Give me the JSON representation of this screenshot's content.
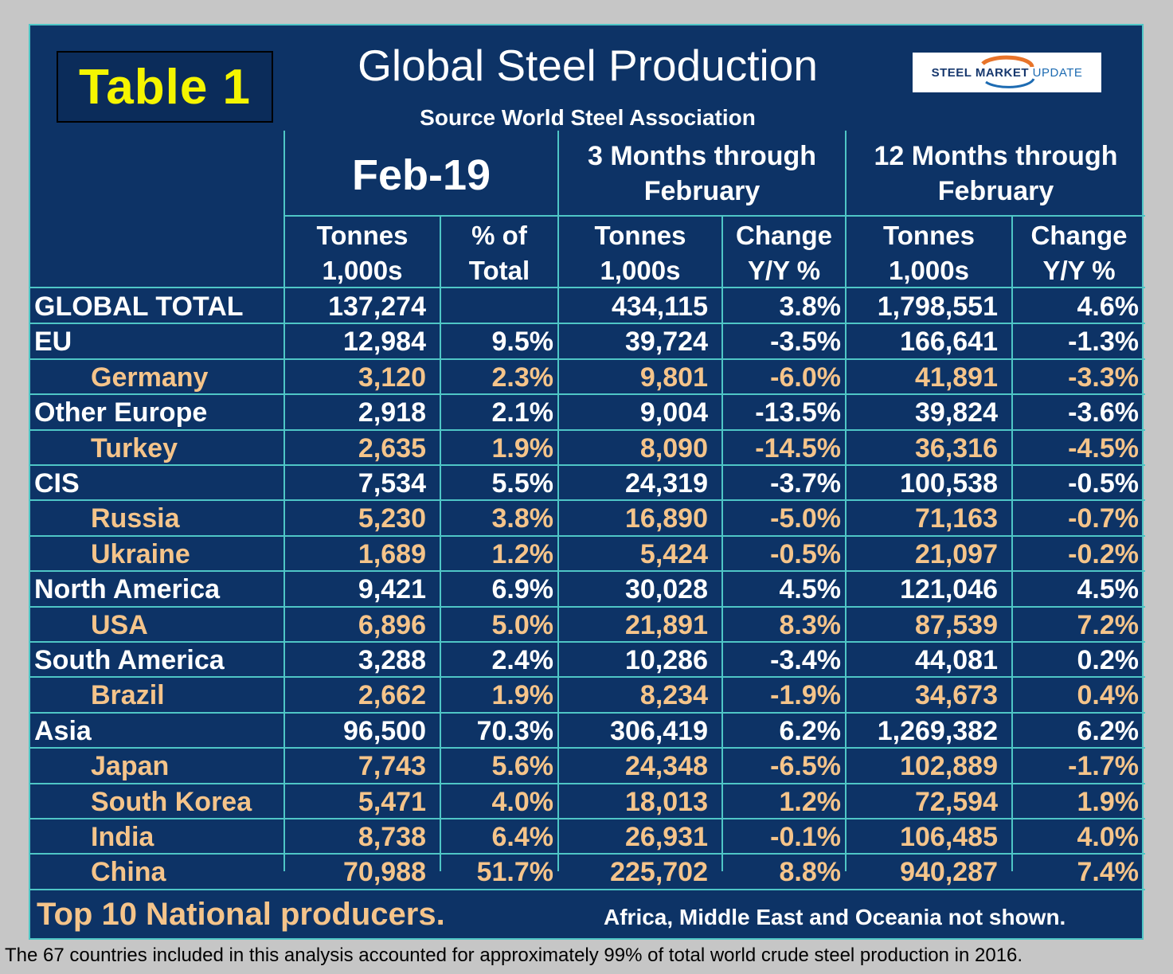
{
  "table_label": "Table 1",
  "title": "Global Steel Production",
  "subtitle": "Source World Steel Association",
  "logo": {
    "bold": "STEEL MARKET",
    "light": "UPDATE",
    "accent_colors": [
      "#e8742a",
      "#1d6bb2"
    ]
  },
  "headers": {
    "period_1": "Feb-19",
    "period_2": {
      "line1": "3 Months through",
      "line2": "February"
    },
    "period_3": {
      "line1": "12 Months through",
      "line2": "February"
    },
    "columns": [
      {
        "line1": "Tonnes",
        "line2": "1,000s"
      },
      {
        "line1": "% of",
        "line2": "Total"
      },
      {
        "line1": "Tonnes",
        "line2": "1,000s"
      },
      {
        "line1": "Change",
        "line2": "Y/Y %"
      },
      {
        "line1": "Tonnes",
        "line2": "1,000s"
      },
      {
        "line1": "Change",
        "line2": "Y/Y %"
      }
    ]
  },
  "rows": [
    {
      "name": "GLOBAL TOTAL",
      "level": "main",
      "values": [
        "137,274",
        "",
        "434,115",
        "3.8%",
        "1,798,551",
        "4.6%"
      ]
    },
    {
      "name": "EU",
      "level": "main",
      "values": [
        "12,984",
        "9.5%",
        "39,724",
        "-3.5%",
        "166,641",
        "-1.3%"
      ]
    },
    {
      "name": "Germany",
      "level": "sub",
      "values": [
        "3,120",
        "2.3%",
        "9,801",
        "-6.0%",
        "41,891",
        "-3.3%"
      ]
    },
    {
      "name": "Other Europe",
      "level": "main",
      "values": [
        "2,918",
        "2.1%",
        "9,004",
        "-13.5%",
        "39,824",
        "-3.6%"
      ]
    },
    {
      "name": "Turkey",
      "level": "sub",
      "values": [
        "2,635",
        "1.9%",
        "8,090",
        "-14.5%",
        "36,316",
        "-4.5%"
      ]
    },
    {
      "name": "CIS",
      "level": "main",
      "values": [
        "7,534",
        "5.5%",
        "24,319",
        "-3.7%",
        "100,538",
        "-0.5%"
      ]
    },
    {
      "name": "Russia",
      "level": "sub",
      "values": [
        "5,230",
        "3.8%",
        "16,890",
        "-5.0%",
        "71,163",
        "-0.7%"
      ]
    },
    {
      "name": "Ukraine",
      "level": "sub",
      "values": [
        "1,689",
        "1.2%",
        "5,424",
        "-0.5%",
        "21,097",
        "-0.2%"
      ]
    },
    {
      "name": "North America",
      "level": "main",
      "values": [
        "9,421",
        "6.9%",
        "30,028",
        "4.5%",
        "121,046",
        "4.5%"
      ]
    },
    {
      "name": "USA",
      "level": "sub",
      "values": [
        "6,896",
        "5.0%",
        "21,891",
        "8.3%",
        "87,539",
        "7.2%"
      ]
    },
    {
      "name": "South America",
      "level": "main",
      "values": [
        "3,288",
        "2.4%",
        "10,286",
        "-3.4%",
        "44,081",
        "0.2%"
      ]
    },
    {
      "name": "Brazil",
      "level": "sub",
      "values": [
        "2,662",
        "1.9%",
        "8,234",
        "-1.9%",
        "34,673",
        "0.4%"
      ]
    },
    {
      "name": "Asia",
      "level": "main",
      "values": [
        "96,500",
        "70.3%",
        "306,419",
        "6.2%",
        "1,269,382",
        "6.2%"
      ]
    },
    {
      "name": "Japan",
      "level": "sub",
      "values": [
        "7,743",
        "5.6%",
        "24,348",
        "-6.5%",
        "102,889",
        "-1.7%"
      ]
    },
    {
      "name": "South Korea",
      "level": "sub",
      "values": [
        "5,471",
        "4.0%",
        "18,013",
        "1.2%",
        "72,594",
        "1.9%"
      ]
    },
    {
      "name": "India",
      "level": "sub",
      "values": [
        "8,738",
        "6.4%",
        "26,931",
        "-0.1%",
        "106,485",
        "4.0%"
      ]
    },
    {
      "name": "China",
      "level": "sub",
      "values": [
        "70,988",
        "51.7%",
        "225,702",
        "8.8%",
        "940,287",
        "7.4%"
      ]
    }
  ],
  "footer_left": "Top 10 National producers.",
  "footer_right": "Africa, Middle East and Oceania not shown.",
  "caption": "The 67 countries included in this analysis accounted for approximately 99% of total world crude steel production in 2016.",
  "colors": {
    "background": "#0d3366",
    "grid": "#4fc6c6",
    "label_yellow": "#f5f500",
    "sub_text": "#f5c48a",
    "page": "#c6c6c6"
  }
}
